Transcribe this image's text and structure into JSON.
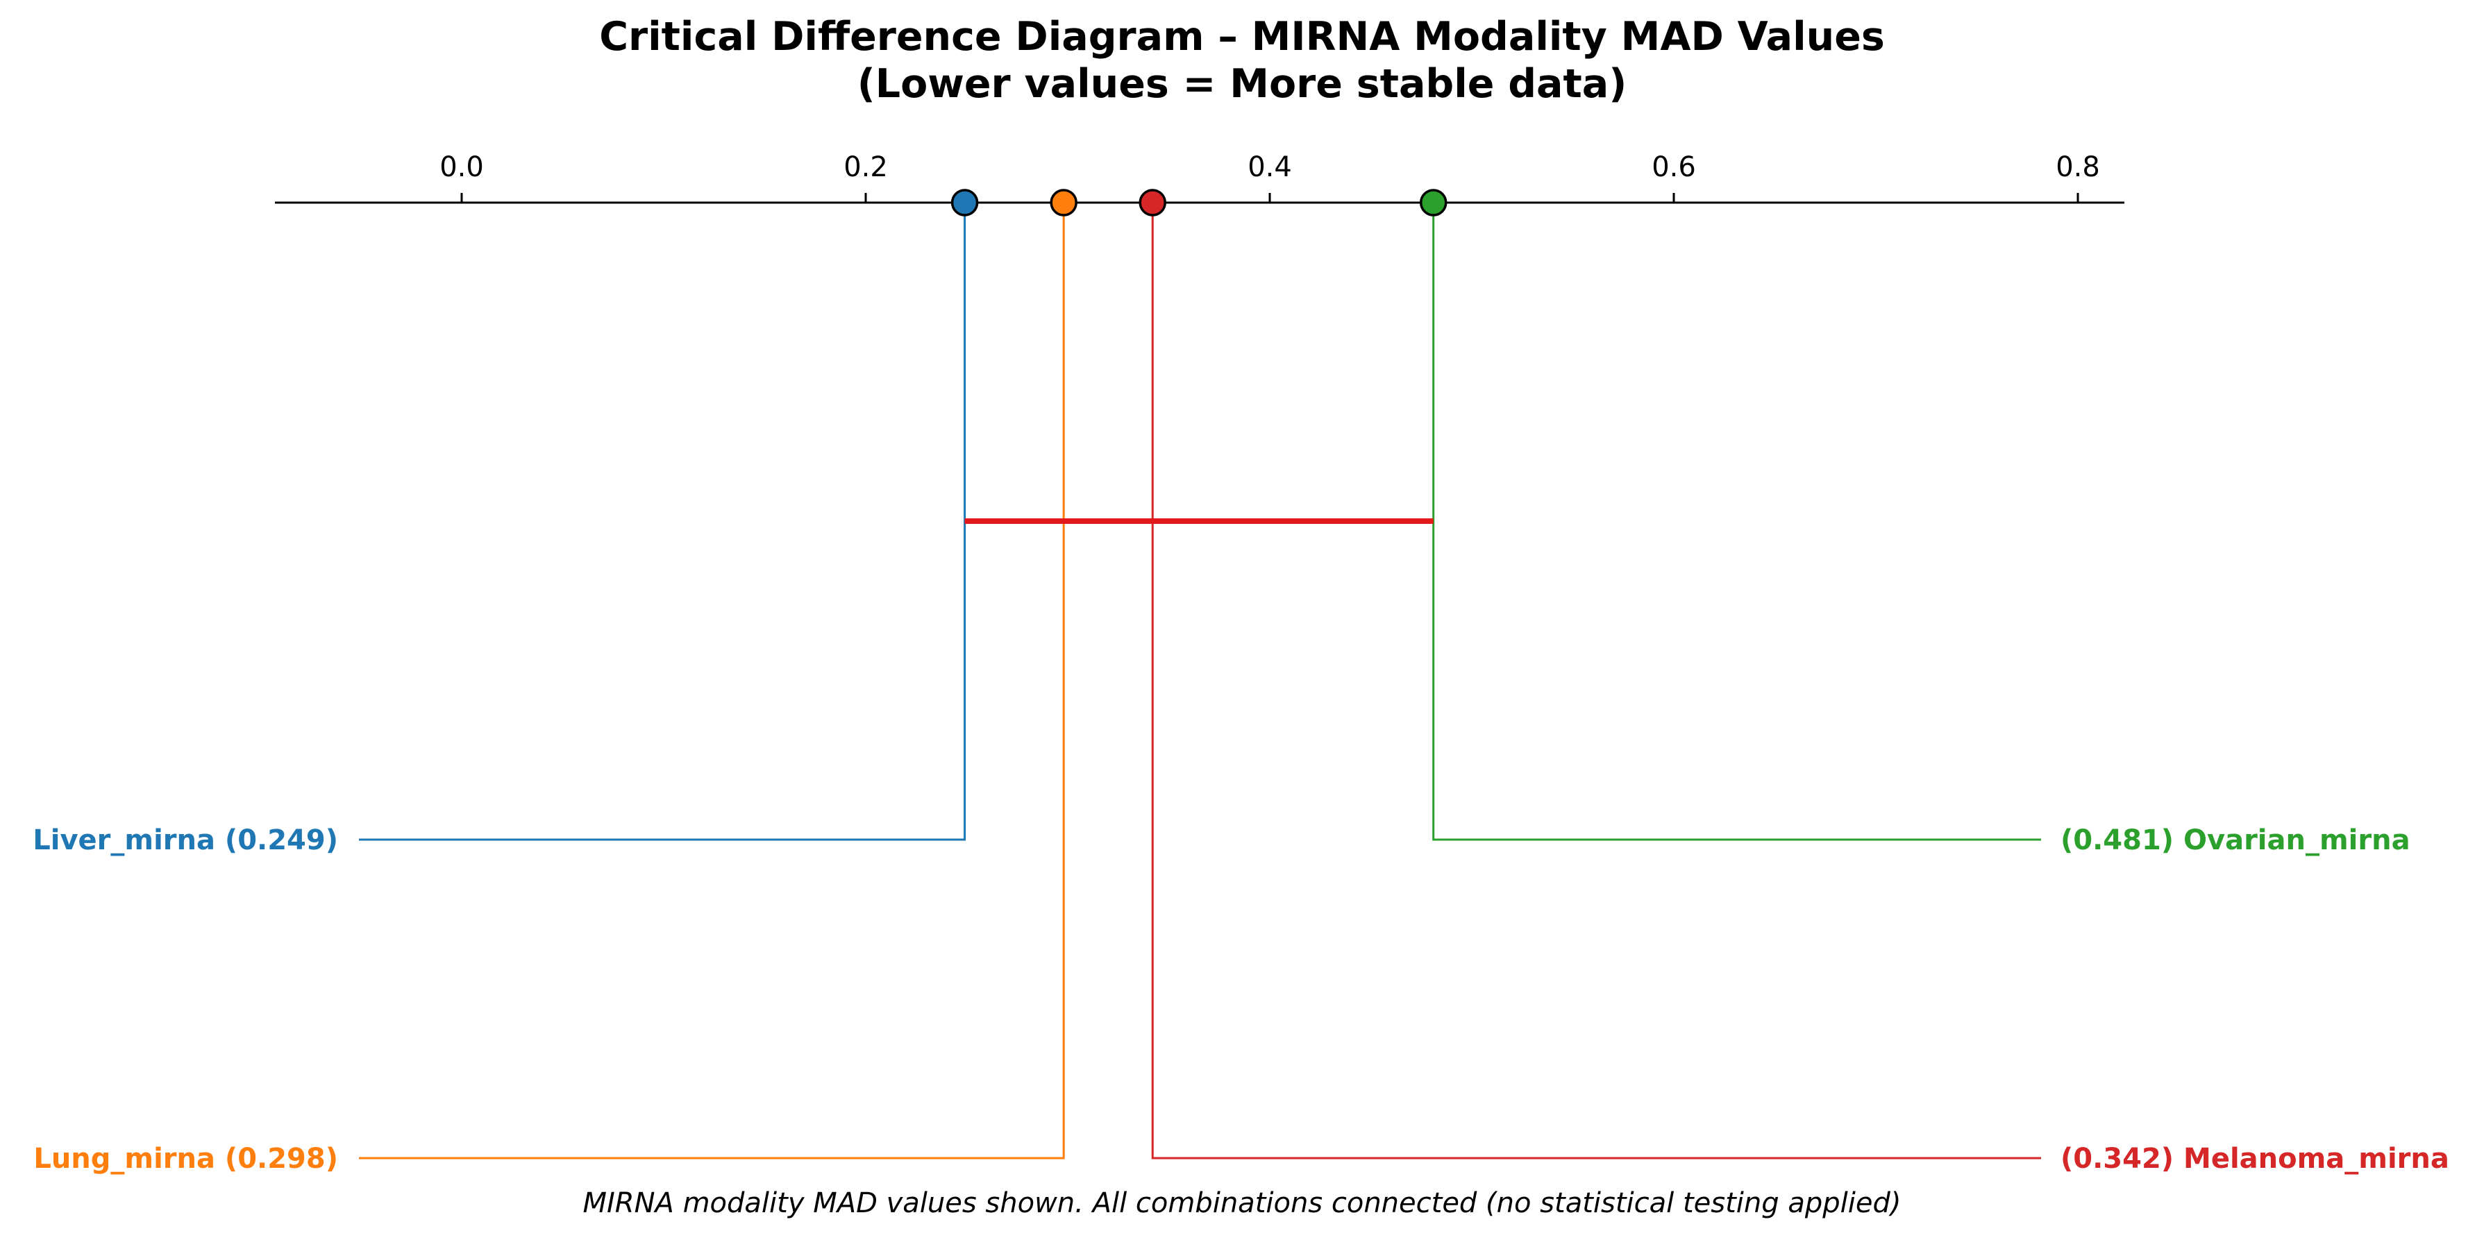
{
  "chart_data": {
    "type": "critical-difference",
    "title": "Critical Difference Diagram – MIRNA Modality MAD Values",
    "subtitle": "(Lower values = More stable data)",
    "xlabel": "",
    "ylabel": "",
    "xlim": [
      -0.093,
      0.823
    ],
    "ticks": [
      {
        "value": 0.0,
        "label": "0.0"
      },
      {
        "value": 0.2,
        "label": "0.2"
      },
      {
        "value": 0.4,
        "label": "0.4"
      },
      {
        "value": 0.6,
        "label": "0.6"
      },
      {
        "value": 0.8,
        "label": "0.8"
      }
    ],
    "series": [
      {
        "name": "Liver_mirna",
        "value": 0.249,
        "label": "Liver_mirna (0.249)",
        "color": "#1f77b4",
        "side": "left",
        "row": 1
      },
      {
        "name": "Lung_mirna",
        "value": 0.298,
        "label": "Lung_mirna (0.298)",
        "color": "#ff7f0e",
        "side": "left",
        "row": 2
      },
      {
        "name": "Melanoma_mirna",
        "value": 0.342,
        "label": "(0.342) Melanoma_mirna",
        "color": "#d62728",
        "side": "right",
        "row": 2
      },
      {
        "name": "Ovarian_mirna",
        "value": 0.481,
        "label": "(0.481) Ovarian_mirna",
        "color": "#2ca02c",
        "side": "right",
        "row": 1
      }
    ],
    "clique_bars": [
      {
        "from": 0.249,
        "to": 0.481,
        "color": "#e31a1c"
      }
    ],
    "grid": false,
    "legend": "none"
  },
  "footnote": "MIRNA modality MAD values shown. All combinations connected (no statistical testing applied)"
}
